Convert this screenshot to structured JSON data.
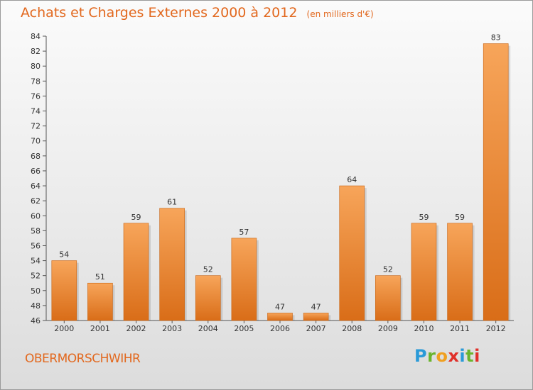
{
  "title": "Achats et Charges Externes 2000 à 2012",
  "unit": "(en milliers d'€)",
  "commune": "OBERMORSCHWIHR",
  "logo": {
    "letters": [
      "P",
      "r",
      "o",
      "x",
      "i",
      "t",
      "i"
    ],
    "colors": [
      "#2a9ad8",
      "#6ab42c",
      "#f0a020",
      "#e0302a",
      "#2a9ad8",
      "#6ab42c",
      "#e0302a"
    ]
  },
  "colors": {
    "accent": "#e2681e",
    "bar_light": "#f7a55a",
    "bar_dark": "#d96d18"
  },
  "chart_data": {
    "type": "bar",
    "title": "Achats et Charges Externes 2000 à 2012",
    "subtitle": "(en milliers d'€)",
    "xlabel": "",
    "ylabel": "",
    "categories": [
      "2000",
      "2001",
      "2002",
      "2003",
      "2004",
      "2005",
      "2006",
      "2007",
      "2008",
      "2009",
      "2010",
      "2011",
      "2012"
    ],
    "values": [
      54,
      51,
      59,
      61,
      52,
      57,
      47,
      47,
      64,
      52,
      59,
      59,
      83
    ],
    "data_labels": [
      "54",
      "51",
      "59",
      "61",
      "52",
      "57",
      "47",
      "47",
      "64",
      "52",
      "59",
      "59",
      "83"
    ],
    "ylim": [
      46,
      84
    ],
    "yticks": [
      46,
      48,
      50,
      52,
      54,
      56,
      58,
      60,
      62,
      64,
      66,
      68,
      70,
      72,
      74,
      76,
      78,
      80,
      82,
      84
    ],
    "grid": false
  }
}
